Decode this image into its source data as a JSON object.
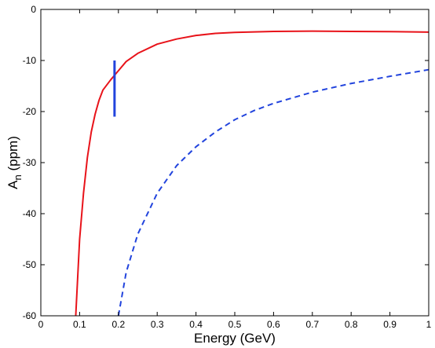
{
  "chart_data": {
    "type": "line",
    "title": "",
    "xlabel": "Energy (GeV)",
    "ylabel": {
      "main": "A",
      "subscript": "n",
      "suffix": " (ppm)"
    },
    "xlim": [
      0,
      1
    ],
    "ylim": [
      -60,
      0
    ],
    "xticks": [
      0,
      0.1,
      0.2,
      0.3,
      0.4,
      0.5,
      0.6,
      0.7,
      0.8,
      0.9,
      1
    ],
    "xtick_labels": [
      "0",
      "0.1",
      "0.2",
      "0.3",
      "0.4",
      "0.5",
      "0.6",
      "0.7",
      "0.8",
      "0.9",
      "1"
    ],
    "yticks": [
      0,
      -10,
      -20,
      -30,
      -40,
      -50,
      -60
    ],
    "ytick_labels": [
      "0",
      "-10",
      "-20",
      "-30",
      "-40",
      "-50",
      "-60"
    ],
    "grid": false,
    "legend": false,
    "series": [
      {
        "style": "solid",
        "color": "#e8131a",
        "x": [
          0.09,
          0.1,
          0.11,
          0.12,
          0.13,
          0.14,
          0.15,
          0.16,
          0.18,
          0.2,
          0.22,
          0.25,
          0.3,
          0.35,
          0.4,
          0.45,
          0.5,
          0.6,
          0.7,
          0.8,
          0.9,
          1.0
        ],
        "y": [
          -60,
          -45,
          -36,
          -29,
          -24,
          -20.5,
          -17.8,
          -15.8,
          -13.8,
          -12.0,
          -10.2,
          -8.6,
          -6.8,
          -5.8,
          -5.1,
          -4.7,
          -4.5,
          -4.3,
          -4.25,
          -4.3,
          -4.35,
          -4.45
        ]
      },
      {
        "style": "dashed",
        "color": "#2244dd",
        "x": [
          0.2,
          0.22,
          0.25,
          0.3,
          0.35,
          0.4,
          0.45,
          0.5,
          0.55,
          0.6,
          0.7,
          0.8,
          0.9,
          1.0
        ],
        "y": [
          -60,
          -51.5,
          -44.0,
          -36.0,
          -30.6,
          -26.9,
          -24.0,
          -21.6,
          -19.8,
          -18.4,
          -16.2,
          -14.5,
          -13.1,
          -11.8
        ]
      },
      {
        "style": "errorbar",
        "color": "#2244dd",
        "x": [
          0.19,
          0.19
        ],
        "y": [
          -10,
          -21
        ]
      }
    ]
  }
}
